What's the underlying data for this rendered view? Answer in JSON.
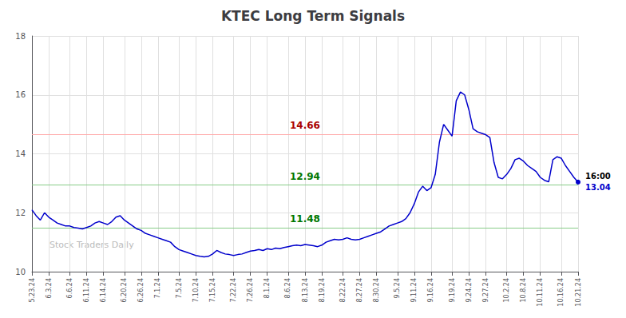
{
  "chart_data": {
    "type": "line",
    "title": "KTEC Long Term Signals",
    "categories": [
      "5.23.24",
      null,
      null,
      null,
      "6.3.24",
      null,
      null,
      null,
      null,
      "6.6.24",
      null,
      null,
      null,
      "6.11.24",
      null,
      null,
      null,
      "6.14.24",
      null,
      null,
      null,
      null,
      "6.20.24",
      null,
      null,
      null,
      "6.26.24",
      null,
      null,
      null,
      "7.1.24",
      null,
      null,
      null,
      null,
      "7.5.24",
      null,
      null,
      null,
      "7.10.24",
      null,
      null,
      null,
      "7.15.24",
      null,
      null,
      null,
      null,
      "7.22.24",
      null,
      null,
      null,
      "7.26.24",
      null,
      null,
      null,
      "8.1.24",
      null,
      null,
      null,
      null,
      "8.6.24",
      null,
      null,
      null,
      "8.13.24",
      null,
      null,
      null,
      "8.19.24",
      null,
      null,
      null,
      null,
      "8.22.24",
      null,
      null,
      null,
      "8.27.24",
      null,
      null,
      null,
      "8.30.24",
      null,
      null,
      null,
      null,
      "9.5.24",
      null,
      null,
      null,
      "9.11.24",
      null,
      null,
      null,
      "9.16.24",
      null,
      null,
      null,
      null,
      "9.19.24",
      null,
      null,
      null,
      "9.24.24",
      null,
      null,
      null,
      "9.27.24",
      null,
      null,
      null,
      null,
      "10.2.24",
      null,
      null,
      null,
      "10.8.24",
      null,
      null,
      null,
      "10.11.24",
      null,
      null,
      null,
      null,
      "10.16.24",
      null,
      null,
      null,
      "10.21.24"
    ],
    "color": "#0000cc",
    "values": [
      12.1,
      11.9,
      11.75,
      12.0,
      11.85,
      11.75,
      11.65,
      11.6,
      11.55,
      11.55,
      11.5,
      11.48,
      11.45,
      11.5,
      11.55,
      11.65,
      11.7,
      11.65,
      11.6,
      11.7,
      11.85,
      11.9,
      11.75,
      11.65,
      11.55,
      11.45,
      11.4,
      11.3,
      11.25,
      11.2,
      11.15,
      11.1,
      11.05,
      11.0,
      10.85,
      10.75,
      10.7,
      10.65,
      10.6,
      10.55,
      10.52,
      10.5,
      10.52,
      10.6,
      10.72,
      10.65,
      10.6,
      10.58,
      10.55,
      10.58,
      10.6,
      10.65,
      10.7,
      10.72,
      10.75,
      10.72,
      10.78,
      10.75,
      10.8,
      10.78,
      10.82,
      10.85,
      10.88,
      10.9,
      10.88,
      10.92,
      10.9,
      10.88,
      10.85,
      10.9,
      11.0,
      11.05,
      11.1,
      11.08,
      11.1,
      11.15,
      11.1,
      11.08,
      11.1,
      11.15,
      11.2,
      11.25,
      11.3,
      11.35,
      11.45,
      11.55,
      11.6,
      11.65,
      11.7,
      11.8,
      12.0,
      12.3,
      12.7,
      12.9,
      12.75,
      12.85,
      13.3,
      14.4,
      15.0,
      14.8,
      14.6,
      15.8,
      16.1,
      16.0,
      15.5,
      14.85,
      14.75,
      14.7,
      14.65,
      14.55,
      13.7,
      13.2,
      13.15,
      13.3,
      13.5,
      13.8,
      13.85,
      13.75,
      13.6,
      13.5,
      13.4,
      13.2,
      13.1,
      13.05,
      13.8,
      13.9,
      13.85,
      13.6,
      13.4,
      13.2,
      13.04
    ],
    "ylim": [
      10,
      18
    ],
    "yticks": [
      10,
      12,
      14,
      16,
      18
    ],
    "grid": true,
    "lines": [
      {
        "y": 14.66,
        "color": "#ffaaaa",
        "label": "14.66",
        "label_color": "#aa0000"
      },
      {
        "y": 12.94,
        "color": "#88cc88",
        "label": "12.94",
        "label_color": "#007700"
      },
      {
        "y": 11.48,
        "color": "#88cc88",
        "label": "11.48",
        "label_color": "#007700"
      }
    ],
    "annotations": [
      {
        "text": "16:00",
        "color": "#000000"
      },
      {
        "text": "13.04",
        "color": "#0000cc"
      }
    ],
    "watermark": {
      "text": "Stock Traders Daily",
      "color": "#bbbbbb"
    }
  }
}
